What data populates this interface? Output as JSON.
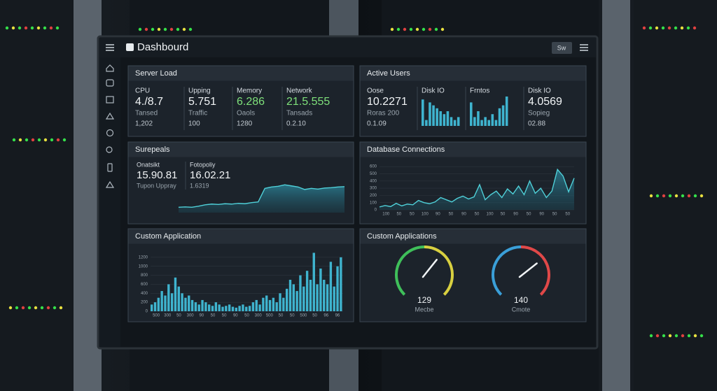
{
  "header": {
    "title": "Dashbourd",
    "button": "Sw"
  },
  "panels": [
    {
      "kind": "metrics",
      "title": "Server Load",
      "items": [
        {
          "label": "CPU",
          "value": "4./8.7",
          "sub": "Tansed",
          "sub2": "1,202"
        },
        {
          "label": "Upping",
          "value": "5.751",
          "sub": "Traffic",
          "sub2": "100"
        },
        {
          "label": "Memory",
          "value": "6.286",
          "sub": "Oaols",
          "sub2": "1280",
          "color": "#7ee07a"
        },
        {
          "label": "Network",
          "value": "21.5.555",
          "sub": "Tansads",
          "sub2": "0.2.10",
          "color": "#7ee07a"
        }
      ]
    },
    {
      "kind": "metrics",
      "title": "Active Users",
      "items": [
        {
          "label": "Oose",
          "value": "10.2271",
          "sub": "Roras 200",
          "sub2": "0.1.09"
        },
        {
          "label": "Disk IO",
          "bars": [
            9,
            2,
            8,
            7,
            6,
            5,
            4,
            5,
            3,
            2,
            3
          ],
          "ylim": [
            0,
            10
          ]
        },
        {
          "label": "Frntos",
          "bars": [
            8,
            3,
            5,
            2,
            3,
            2,
            4,
            2,
            6,
            7,
            10
          ],
          "ylim": [
            0,
            10
          ]
        },
        {
          "label": "Disk IO",
          "value": "4.0569",
          "sub": "Sopieg",
          "sub2": "02.88"
        }
      ]
    },
    {
      "kind": "line",
      "title": "Surepeals",
      "items": [
        {
          "label": "Onatsikt",
          "value": "15.90.81",
          "sub": "Tupon Uppray"
        },
        {
          "label": "Fotopoliy",
          "value": "16.02.21",
          "sub": "1.6319"
        }
      ],
      "chart": {
        "values": [
          1.5,
          1.6,
          1.5,
          1.8,
          2.2,
          2.4,
          2.3,
          2.5,
          2.4,
          2.6,
          2.5,
          2.8,
          3.0,
          6.8,
          7.2,
          7.4,
          7.8,
          7.5,
          7.2,
          6.5,
          6.8,
          6.6,
          6.9,
          7.0,
          7.2,
          7.3
        ],
        "ylim": [
          0,
          10
        ]
      }
    },
    {
      "kind": "axes-line",
      "title": "Database Connections",
      "chart": {
        "values": [
          40,
          60,
          45,
          90,
          55,
          80,
          70,
          130,
          100,
          85,
          110,
          170,
          140,
          110,
          160,
          190,
          150,
          180,
          350,
          140,
          210,
          260,
          170,
          290,
          220,
          330,
          210,
          400,
          230,
          300,
          170,
          260,
          560,
          470,
          250,
          440
        ],
        "ylim": [
          0,
          650
        ],
        "yticks": [
          0,
          100,
          200,
          300,
          400,
          500,
          600
        ],
        "xlabels": [
          "100",
          "50",
          "50",
          "100",
          "90",
          "50",
          "90",
          "50",
          "100",
          "50",
          "90",
          "50",
          "90",
          "50",
          "50"
        ]
      }
    },
    {
      "kind": "axes-bars",
      "title": "Custom Application",
      "chart": {
        "values": [
          150,
          200,
          300,
          450,
          350,
          600,
          400,
          750,
          550,
          400,
          300,
          350,
          250,
          200,
          150,
          250,
          200,
          150,
          120,
          200,
          150,
          100,
          120,
          150,
          100,
          80,
          120,
          150,
          100,
          120,
          200,
          250,
          150,
          300,
          350,
          250,
          300,
          200,
          400,
          300,
          500,
          700,
          600,
          450,
          800,
          550,
          900,
          700,
          1300,
          600,
          950,
          700,
          600,
          1100,
          550,
          1000,
          1200
        ],
        "ylim": [
          0,
          1400
        ],
        "yticks": [
          0,
          200,
          400,
          600,
          800,
          1000,
          1200
        ],
        "xlabels": [
          "500",
          "300",
          "50",
          "300",
          "90",
          "50",
          "50",
          "90",
          "50",
          "300",
          "500",
          "50",
          "50",
          "500",
          "50",
          "96",
          "96"
        ]
      }
    },
    {
      "kind": "gauges",
      "title": "Custom Applications",
      "gauges": [
        {
          "value": 129,
          "label": "Mecbe",
          "lim": [
            0,
            200
          ],
          "colors": [
            "#3fbf5a",
            "#d8d040"
          ]
        },
        {
          "value": 140,
          "label": "Cmote",
          "lim": [
            0,
            200
          ],
          "colors": [
            "#3a9fd8",
            "#e04848"
          ]
        }
      ]
    }
  ]
}
